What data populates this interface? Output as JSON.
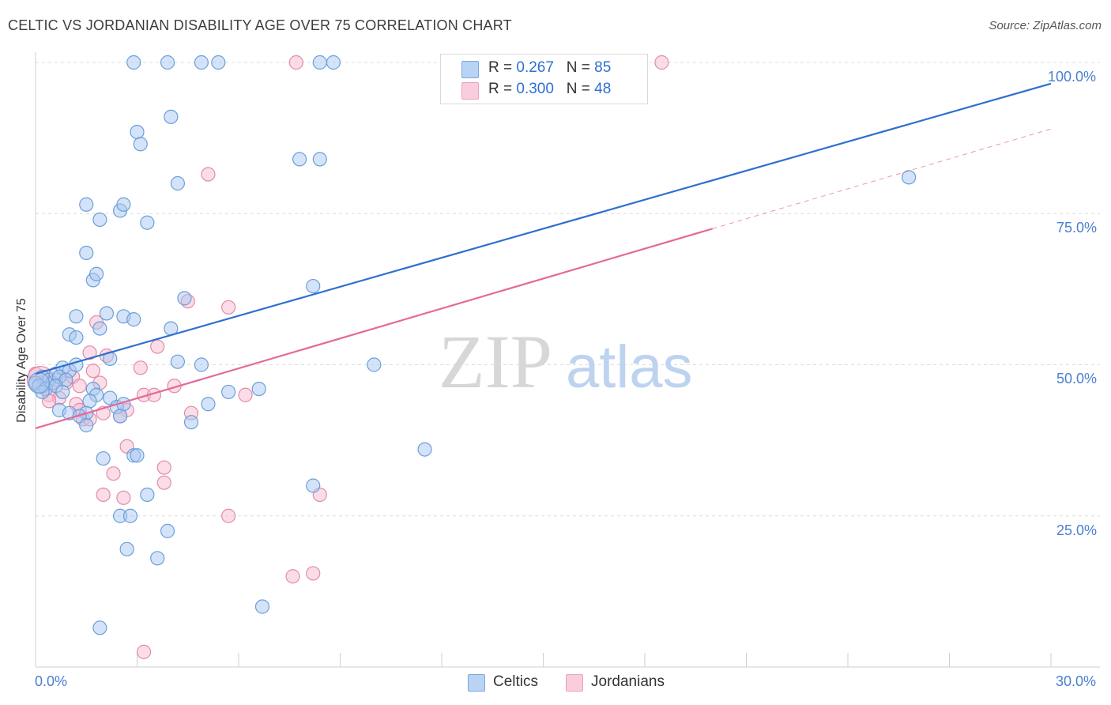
{
  "header": {
    "title": "CELTIC VS JORDANIAN DISABILITY AGE OVER 75 CORRELATION CHART",
    "source": "Source: ZipAtlas.com"
  },
  "watermark": {
    "zip": "ZIP",
    "atlas": "atlas"
  },
  "colors": {
    "celtics_fill": "#a9c8f0",
    "celtics_stroke": "#6a9fdc",
    "celtics_line": "#2f6fd0",
    "jordanians_fill": "#f6bcd0",
    "jordanians_stroke": "#e48aaa",
    "jordanians_line": "#e46a96",
    "tick_text": "#4a7fd0",
    "grid": "#dcdcdc"
  },
  "legend": {
    "rows": [
      {
        "r_label": "R = ",
        "r_value": "0.267",
        "n_label": "N = ",
        "n_value": "85"
      },
      {
        "r_label": "R = ",
        "r_value": "0.300",
        "n_label": "N = ",
        "n_value": "48"
      }
    ],
    "series": [
      "Celtics",
      "Jordanians"
    ]
  },
  "axes": {
    "x_ticks": [
      "0.0%",
      "30.0%"
    ],
    "y_ticks": [
      "100.0%",
      "75.0%",
      "50.0%",
      "25.0%"
    ],
    "ylabel": "Disability Age Over 75"
  },
  "chart_data": {
    "type": "scatter",
    "title": "CELTIC VS JORDANIAN DISABILITY AGE OVER 75 CORRELATION CHART",
    "xlabel": "",
    "ylabel": "Disability Age Over 75",
    "xlim": [
      0,
      30
    ],
    "ylim": [
      0,
      102
    ],
    "grid": true,
    "legend_position": "top-center",
    "series": [
      {
        "name": "Celtics",
        "r": 0.267,
        "n": 85,
        "trend": {
          "x": [
            0,
            30
          ],
          "y": [
            48.5,
            96.5
          ],
          "style": "solid"
        },
        "points": [
          [
            2.9,
            100
          ],
          [
            3.9,
            100
          ],
          [
            4.9,
            100
          ],
          [
            5.4,
            100
          ],
          [
            8.4,
            100
          ],
          [
            8.8,
            100
          ],
          [
            3.0,
            88.5
          ],
          [
            3.1,
            86.5
          ],
          [
            4.0,
            91
          ],
          [
            4.2,
            80
          ],
          [
            7.8,
            84
          ],
          [
            8.4,
            84
          ],
          [
            25.8,
            81
          ],
          [
            1.5,
            76.5
          ],
          [
            1.9,
            74
          ],
          [
            2.5,
            75.5
          ],
          [
            2.6,
            76.5
          ],
          [
            3.3,
            73.5
          ],
          [
            1.5,
            68.5
          ],
          [
            1.7,
            64
          ],
          [
            1.8,
            65
          ],
          [
            4.4,
            61
          ],
          [
            8.2,
            63
          ],
          [
            1.2,
            58
          ],
          [
            2.1,
            58.5
          ],
          [
            2.6,
            58
          ],
          [
            2.9,
            57.5
          ],
          [
            4.0,
            56
          ],
          [
            1.0,
            55
          ],
          [
            1.2,
            54.5
          ],
          [
            1.9,
            56
          ],
          [
            2.2,
            51
          ],
          [
            4.2,
            50.5
          ],
          [
            4.9,
            50
          ],
          [
            10.0,
            50
          ],
          [
            0.2,
            48
          ],
          [
            0.4,
            47.5
          ],
          [
            0.5,
            47
          ],
          [
            0.6,
            48.5
          ],
          [
            0.8,
            49.5
          ],
          [
            1.0,
            49
          ],
          [
            1.2,
            50
          ],
          [
            0.0,
            47
          ],
          [
            0.1,
            46.5
          ],
          [
            0.3,
            46
          ],
          [
            0.7,
            48
          ],
          [
            0.9,
            47.5
          ],
          [
            0.6,
            46.5
          ],
          [
            0.2,
            45.5
          ],
          [
            1.7,
            46
          ],
          [
            2.2,
            44.5
          ],
          [
            1.8,
            45
          ],
          [
            0.8,
            45.5
          ],
          [
            5.7,
            45.5
          ],
          [
            6.6,
            46
          ],
          [
            1.6,
            44
          ],
          [
            1.5,
            42
          ],
          [
            0.7,
            42.5
          ],
          [
            1.0,
            42
          ],
          [
            1.3,
            41.5
          ],
          [
            2.4,
            43
          ],
          [
            2.6,
            43.5
          ],
          [
            2.5,
            41.5
          ],
          [
            5.1,
            43.5
          ],
          [
            1.5,
            40
          ],
          [
            4.6,
            40.5
          ],
          [
            2.0,
            34.5
          ],
          [
            2.9,
            35
          ],
          [
            3.0,
            35
          ],
          [
            11.5,
            36
          ],
          [
            3.3,
            28.5
          ],
          [
            8.2,
            30
          ],
          [
            2.5,
            25
          ],
          [
            2.8,
            25
          ],
          [
            3.9,
            22.5
          ],
          [
            2.7,
            19.5
          ],
          [
            3.6,
            18
          ],
          [
            6.7,
            10
          ],
          [
            1.9,
            6.5
          ]
        ]
      },
      {
        "name": "Jordanians",
        "r": 0.3,
        "n": 48,
        "trend": {
          "x": [
            0,
            20
          ],
          "y": [
            39.5,
            72.5
          ],
          "style": "solid",
          "extended_to": [
            30,
            89
          ],
          "extended_style": "dashed"
        },
        "points": [
          [
            7.7,
            100
          ],
          [
            18.5,
            100
          ],
          [
            5.1,
            81.5
          ],
          [
            4.5,
            60.5
          ],
          [
            5.7,
            59.5
          ],
          [
            1.8,
            57
          ],
          [
            3.6,
            53
          ],
          [
            1.6,
            52
          ],
          [
            2.1,
            51.5
          ],
          [
            3.1,
            49.5
          ],
          [
            1.7,
            49
          ],
          [
            0.0,
            48.5
          ],
          [
            0.3,
            48
          ],
          [
            0.6,
            47.5
          ],
          [
            0.9,
            47
          ],
          [
            1.1,
            48
          ],
          [
            1.3,
            46.5
          ],
          [
            1.9,
            47
          ],
          [
            4.1,
            46.5
          ],
          [
            0.4,
            45
          ],
          [
            0.7,
            44.5
          ],
          [
            3.2,
            45
          ],
          [
            3.5,
            45
          ],
          [
            6.2,
            45
          ],
          [
            0.4,
            44
          ],
          [
            1.2,
            43.5
          ],
          [
            1.3,
            42.5
          ],
          [
            2.0,
            42
          ],
          [
            2.7,
            42.5
          ],
          [
            2.5,
            41.5
          ],
          [
            4.6,
            42
          ],
          [
            1.4,
            41
          ],
          [
            1.6,
            41
          ],
          [
            2.7,
            36.5
          ],
          [
            2.3,
            32
          ],
          [
            3.8,
            33
          ],
          [
            3.8,
            30.5
          ],
          [
            2.0,
            28.5
          ],
          [
            2.6,
            28
          ],
          [
            8.4,
            28.5
          ],
          [
            5.7,
            25
          ],
          [
            7.6,
            15
          ],
          [
            8.2,
            15.5
          ],
          [
            3.2,
            2.5
          ]
        ]
      }
    ]
  }
}
